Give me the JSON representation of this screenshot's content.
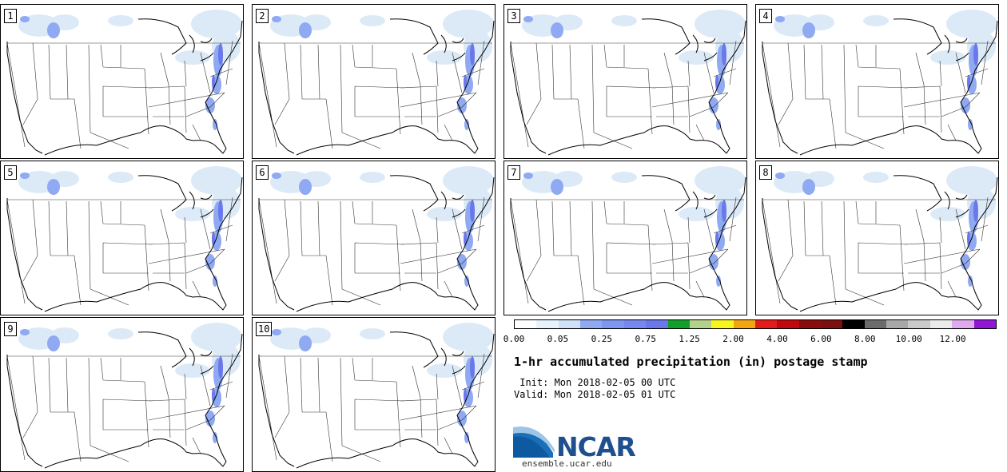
{
  "panels": [
    {
      "label": "1"
    },
    {
      "label": "2"
    },
    {
      "label": "3"
    },
    {
      "label": "4"
    },
    {
      "label": "5"
    },
    {
      "label": "6"
    },
    {
      "label": "7"
    },
    {
      "label": "8"
    },
    {
      "label": "9"
    },
    {
      "label": "10"
    }
  ],
  "colorbar": {
    "colors": [
      "#ffffff",
      "#e8f2fb",
      "#cfe0f7",
      "#8fa9f2",
      "#7e97f0",
      "#7687ee",
      "#6a78ea",
      "#119f2a",
      "#b3d18a",
      "#f7f71f",
      "#f3a512",
      "#e31b1b",
      "#c0090e",
      "#8a0d0d",
      "#7a1010",
      "#000000",
      "#6b6b6b",
      "#a8a8a8",
      "#c9c9c9",
      "#ebebeb",
      "#dfa9ed",
      "#9016d8"
    ],
    "ticks": [
      "0.00",
      "0.05",
      "0.25",
      "0.75",
      "1.25",
      "2.00",
      "4.00",
      "6.00",
      "8.00",
      "10.00",
      "12.00"
    ]
  },
  "title": "1-hr accumulated precipitation (in) postage stamp",
  "init": " Init: Mon 2018-02-05 00 UTC",
  "valid": "Valid: Mon 2018-02-05 01 UTC",
  "logo": {
    "text": "NCAR",
    "url": "ensemble.ucar.edu"
  }
}
